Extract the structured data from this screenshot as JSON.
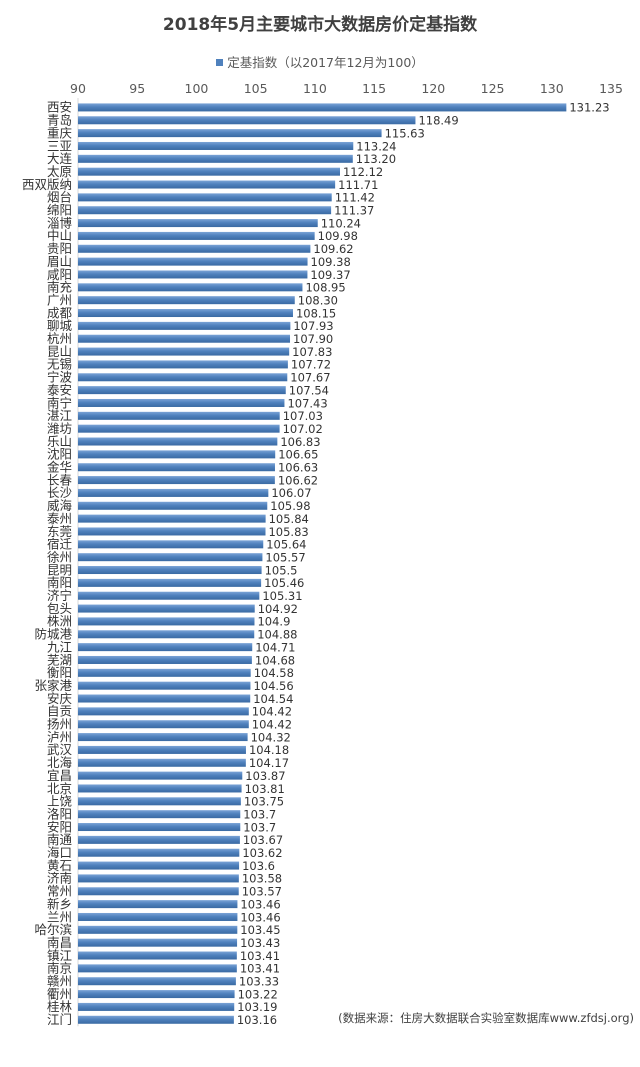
{
  "chart_data": {
    "type": "bar",
    "orientation": "horizontal",
    "title": "2018年5月主要城市大数据房价定基指数",
    "legend": "定基指数（以2017年12月为100）",
    "legend_position": "top",
    "xlim": [
      90,
      135
    ],
    "ticks": [
      90,
      95,
      100,
      105,
      110,
      115,
      120,
      125,
      130,
      135
    ],
    "tick_position": "top",
    "grid": false,
    "bar_color": "#4f81bd",
    "categories": [
      "西安",
      "青岛",
      "重庆",
      "三亚",
      "大连",
      "太原",
      "西双版纳",
      "烟台",
      "绵阳",
      "淄博",
      "中山",
      "贵阳",
      "眉山",
      "咸阳",
      "南充",
      "广州",
      "成都",
      "聊城",
      "杭州",
      "昆山",
      "无锡",
      "宁波",
      "泰安",
      "南宁",
      "湛江",
      "潍坊",
      "乐山",
      "沈阳",
      "金华",
      "长春",
      "长沙",
      "威海",
      "泰州",
      "东莞",
      "宿迁",
      "徐州",
      "昆明",
      "南阳",
      "济宁",
      "包头",
      "株洲",
      "防城港",
      "九江",
      "芜湖",
      "衡阳",
      "张家港",
      "安庆",
      "自贡",
      "扬州",
      "泸州",
      "武汉",
      "北海",
      "宜昌",
      "北京",
      "上饶",
      "洛阳",
      "安阳",
      "南通",
      "海口",
      "黄石",
      "济南",
      "常州",
      "新乡",
      "兰州",
      "哈尔滨",
      "南昌",
      "镇江",
      "南京",
      "赣州",
      "衢州",
      "桂林",
      "江门"
    ],
    "labels": [
      "131.23",
      "118.49",
      "115.63",
      "113.24",
      "113.20",
      "112.12",
      "111.71",
      "111.42",
      "111.37",
      "110.24",
      "109.98",
      "109.62",
      "109.38",
      "109.37",
      "108.95",
      "108.30",
      "108.15",
      "107.93",
      "107.90",
      "107.83",
      "107.72",
      "107.67",
      "107.54",
      "107.43",
      "107.03",
      "107.02",
      "106.83",
      "106.65",
      "106.63",
      "106.62",
      "106.07",
      "105.98",
      "105.84",
      "105.83",
      "105.64",
      "105.57",
      "105.5",
      "105.46",
      "105.31",
      "104.92",
      "104.9",
      "104.88",
      "104.71",
      "104.68",
      "104.58",
      "104.56",
      "104.54",
      "104.42",
      "104.42",
      "104.32",
      "104.18",
      "104.17",
      "103.87",
      "103.81",
      "103.75",
      "103.7",
      "103.7",
      "103.67",
      "103.62",
      "103.6",
      "103.58",
      "103.57",
      "103.46",
      "103.46",
      "103.45",
      "103.43",
      "103.41",
      "103.41",
      "103.33",
      "103.22",
      "103.19",
      "103.16"
    ],
    "values": [
      131.23,
      118.49,
      115.63,
      113.24,
      113.2,
      112.12,
      111.71,
      111.42,
      111.37,
      110.24,
      109.98,
      109.62,
      109.38,
      109.37,
      108.95,
      108.3,
      108.15,
      107.93,
      107.9,
      107.83,
      107.72,
      107.67,
      107.54,
      107.43,
      107.03,
      107.02,
      106.83,
      106.65,
      106.63,
      106.62,
      106.07,
      105.98,
      105.84,
      105.83,
      105.64,
      105.57,
      105.5,
      105.46,
      105.31,
      104.92,
      104.9,
      104.88,
      104.71,
      104.68,
      104.58,
      104.56,
      104.54,
      104.42,
      104.42,
      104.32,
      104.18,
      104.17,
      103.87,
      103.81,
      103.75,
      103.7,
      103.7,
      103.67,
      103.62,
      103.6,
      103.58,
      103.57,
      103.46,
      103.46,
      103.45,
      103.43,
      103.41,
      103.41,
      103.33,
      103.22,
      103.19,
      103.16
    ],
    "source_note": "(数据来源：住房大数据联合实验室数据库www.zfdsj.org)"
  }
}
